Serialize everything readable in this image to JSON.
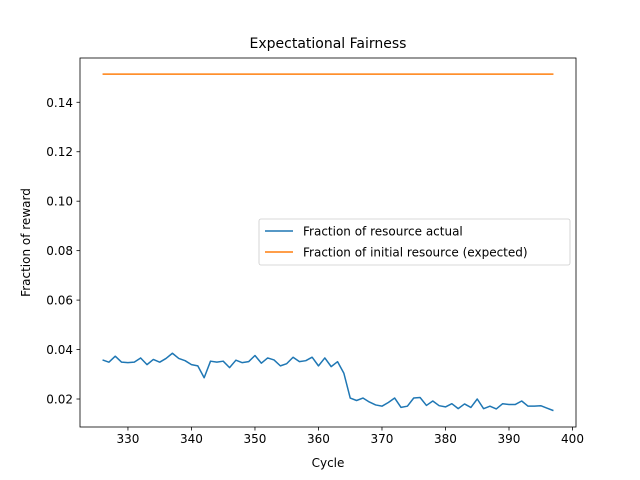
{
  "chart_data": {
    "type": "line",
    "title": "Expectational Fairness",
    "xlabel": "Cycle",
    "ylabel": "Fraction of reward",
    "xlim": [
      322.45,
      400.55
    ],
    "ylim": [
      0.00868,
      0.15791
    ],
    "xticks": [
      330,
      340,
      350,
      360,
      370,
      380,
      390,
      400
    ],
    "yticks": [
      0.02,
      0.04,
      0.06,
      0.08,
      0.1,
      0.12,
      0.14
    ],
    "ytick_labels": [
      "0.02",
      "0.04",
      "0.06",
      "0.08",
      "0.10",
      "0.12",
      "0.14"
    ],
    "grid": false,
    "legend_position": "center-right",
    "series": [
      {
        "name": "Fraction of resource actual",
        "color": "#1f77b4",
        "x": [
          326,
          327,
          328,
          329,
          330,
          331,
          332,
          333,
          334,
          335,
          336,
          337,
          338,
          339,
          340,
          341,
          342,
          343,
          344,
          345,
          346,
          347,
          348,
          349,
          350,
          351,
          352,
          353,
          354,
          355,
          356,
          357,
          358,
          359,
          360,
          361,
          362,
          363,
          364,
          365,
          366,
          367,
          368,
          369,
          370,
          371,
          372,
          373,
          374,
          375,
          376,
          377,
          378,
          379,
          380,
          381,
          382,
          383,
          384,
          385,
          386,
          387,
          388,
          389,
          390,
          391,
          392,
          393,
          394,
          395,
          396,
          397
        ],
        "values": [
          0.0358,
          0.0349,
          0.0373,
          0.0349,
          0.0347,
          0.0349,
          0.0366,
          0.0339,
          0.036,
          0.0349,
          0.0364,
          0.0385,
          0.0364,
          0.0355,
          0.0339,
          0.0334,
          0.0286,
          0.0353,
          0.0349,
          0.0353,
          0.0327,
          0.0357,
          0.0347,
          0.0351,
          0.0376,
          0.0345,
          0.0366,
          0.0358,
          0.0334,
          0.0343,
          0.0369,
          0.0351,
          0.0355,
          0.0369,
          0.0334,
          0.0366,
          0.0331,
          0.0351,
          0.0304,
          0.0204,
          0.0194,
          0.0204,
          0.0188,
          0.0176,
          0.0171,
          0.0186,
          0.0204,
          0.0166,
          0.0171,
          0.0204,
          0.0206,
          0.0174,
          0.0192,
          0.0173,
          0.0168,
          0.0181,
          0.0161,
          0.018,
          0.0166,
          0.02,
          0.0161,
          0.0171,
          0.016,
          0.0181,
          0.0178,
          0.0178,
          0.0192,
          0.0171,
          0.0171,
          0.0173,
          0.0163,
          0.0153
        ]
      },
      {
        "name": "Fraction of initial resource (expected)",
        "color": "#ff7f0e",
        "x": [
          326,
          397
        ],
        "values": [
          0.1514,
          0.1514
        ]
      }
    ]
  }
}
